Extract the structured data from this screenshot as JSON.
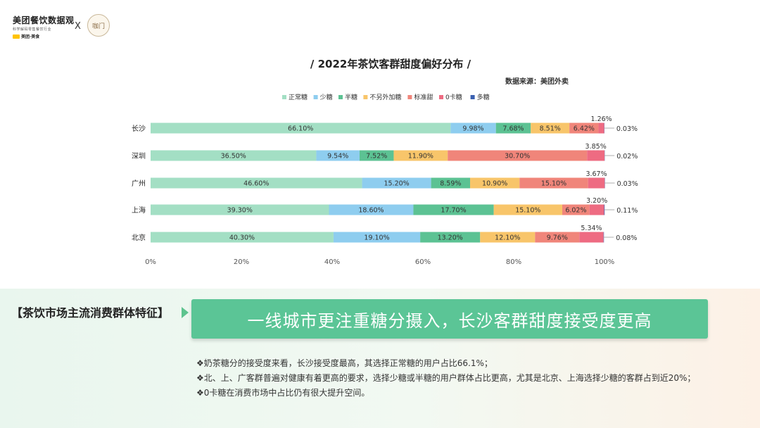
{
  "header": {
    "logo_title": "美团餐饮数据观",
    "logo_subtitle": "科学解码零售餐饮行业",
    "logo_brand": "美团·美食",
    "separator": "X",
    "partner_logo_text": "咖门"
  },
  "chart_data": {
    "type": "bar",
    "orientation": "horizontal",
    "stacked": true,
    "title": "/ 2022年茶饮客群甜度偏好分布 /",
    "source": "数据来源：美团外卖",
    "categories": [
      "长沙",
      "深圳",
      "广州",
      "上海",
      "北京"
    ],
    "x_ticks": [
      "0%",
      "20%",
      "40%",
      "60%",
      "80%",
      "100%"
    ],
    "xlim": [
      0,
      100
    ],
    "legend_position": "top",
    "grid": false,
    "series": [
      {
        "name": "正常糖",
        "color": "#a3dfc4",
        "values": [
          66.1,
          36.5,
          46.6,
          39.3,
          40.3
        ],
        "labels": [
          "66.10%",
          "36.50%",
          "46.60%",
          "39.30%",
          "40.30%"
        ]
      },
      {
        "name": "少糖",
        "color": "#8ecdef",
        "values": [
          9.98,
          9.54,
          15.2,
          18.6,
          19.1
        ],
        "labels": [
          "9.98%",
          "9.54%",
          "15.20%",
          "18.60%",
          "19.10%"
        ]
      },
      {
        "name": "半糖",
        "color": "#5cc293",
        "values": [
          7.68,
          7.52,
          8.59,
          17.7,
          13.2
        ],
        "labels": [
          "7.68%",
          "7.52%",
          "8.59%",
          "17.70%",
          "13.20%"
        ]
      },
      {
        "name": "不另外加糖",
        "color": "#f8c56a",
        "values": [
          8.51,
          11.9,
          10.9,
          15.1,
          12.1
        ],
        "labels": [
          "8.51%",
          "11.90%",
          "10.90%",
          "15.10%",
          "12.10%"
        ]
      },
      {
        "name": "标准甜",
        "color": "#f0857a",
        "values": [
          6.42,
          30.7,
          15.1,
          6.02,
          9.76
        ],
        "labels": [
          "6.42%",
          "30.70%",
          "15.10%",
          "6.02%",
          "9.76%"
        ]
      },
      {
        "name": "0卡糖",
        "color": "#ee6b82",
        "values": [
          1.26,
          3.85,
          3.67,
          3.2,
          5.34
        ],
        "labels": [
          "1.26%",
          "3.85%",
          "3.67%",
          "3.20%",
          "5.34%"
        ]
      },
      {
        "name": "多糖",
        "color": "#3a60b0",
        "values": [
          0.03,
          0.02,
          0.03,
          0.11,
          0.08
        ],
        "labels": [
          "0.03%",
          "0.02%",
          "0.03%",
          "0.11%",
          "0.08%"
        ]
      }
    ]
  },
  "summary": {
    "section_label": "【茶饮市场主流消费群体特征】",
    "headline": "一线城市更注重糖分摄入，长沙客群甜度接受度更高",
    "bullets": [
      "❖奶茶糖分的接受度来看，长沙接受度最高，其选择正常糖的用户占比66.1%；",
      "❖北、上、广客群普遍对健康有着更高的要求，选择少糖或半糖的用户群体占比更高，尤其是北京、上海选择少糖的客群占到近20%；",
      "❖0卡糖在消费市场中占比仍有很大提升空间。"
    ]
  }
}
